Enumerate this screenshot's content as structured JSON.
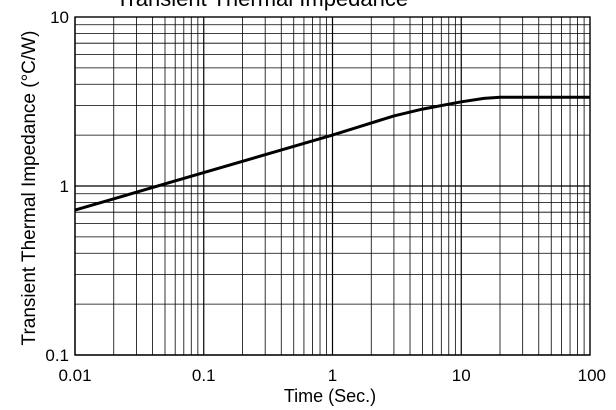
{
  "chart_data": {
    "type": "line",
    "title": "Transient Thermal Impedance",
    "xlabel": "Time (Sec.)",
    "ylabel": "Transient Thermal Impedance (°C/W)",
    "xscale": "log",
    "yscale": "log",
    "xlim": [
      0.01,
      100
    ],
    "ylim": [
      0.1,
      10
    ],
    "grid": true,
    "x_ticks": [
      "0.01",
      "0.1",
      "1",
      "10",
      "100"
    ],
    "y_ticks": [
      "0.1",
      "1",
      "10"
    ],
    "series": [
      {
        "x": [
          0.01,
          0.1,
          1,
          3,
          5,
          10,
          15,
          20,
          100
        ],
        "y": [
          0.72,
          1.2,
          2.0,
          2.6,
          2.85,
          3.15,
          3.3,
          3.35,
          3.35
        ]
      }
    ],
    "line_color": "#000000"
  }
}
